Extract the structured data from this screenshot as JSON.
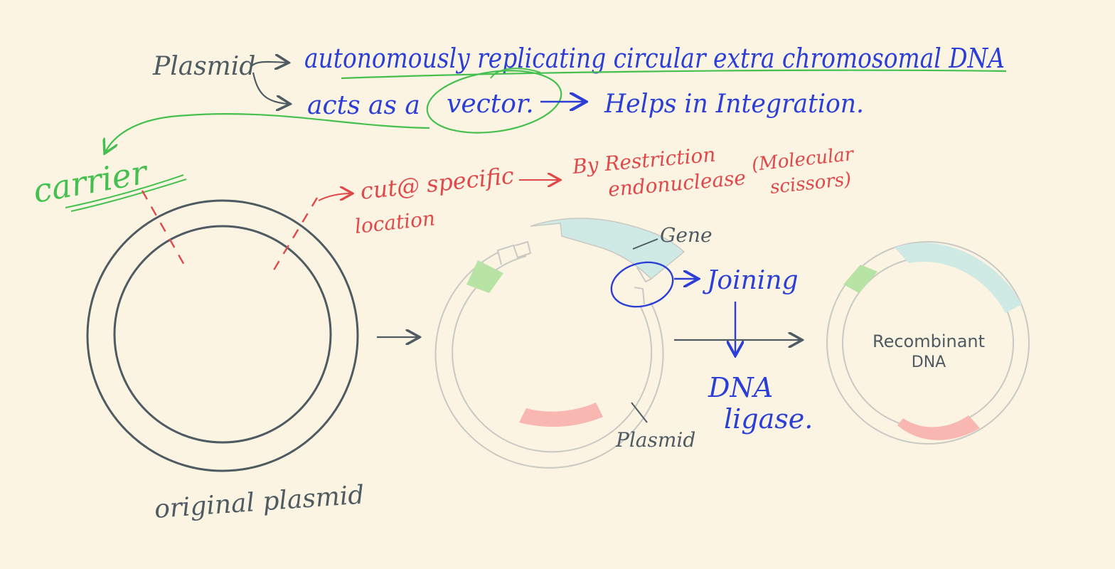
{
  "colors": {
    "background": "#fbf4e2",
    "ink_gray": "#4f5b62",
    "ink_blue": "#2b3fd6",
    "ink_red": "#e0484a",
    "ink_green": "#45c04f",
    "ring_gray": "#c9c9c4",
    "gene_fill": "#cfe9e5",
    "green_segment": "#b7e3a4",
    "red_segment": "#f8b7b0"
  },
  "notes": {
    "plasmid_root": "Plasmid",
    "definition": "autonomously replicating circular extra chromosomal DNA",
    "vector_line_prefix": "acts as a",
    "vector_word": "vector.",
    "integration": "Helps in Integration.",
    "carrier": "carrier",
    "cut_line1": "cut@ specific",
    "cut_line2": "location",
    "enzyme_line1": "By Restriction",
    "enzyme_line2": "endonuclease",
    "scissors_line1": "(Molecular",
    "scissors_line2": "scissors)",
    "original_plasmid": "original plasmid",
    "gene_label": "Gene",
    "plasmid_label": "Plasmid",
    "joining": "Joining",
    "ligase_line1": "DNA",
    "ligase_line2": "ligase.",
    "recombinant_line1": "Recombinant",
    "recombinant_line2": "DNA"
  },
  "icons": {
    "arrow": "right-arrow-icon",
    "down_arrow": "down-arrow-icon"
  }
}
